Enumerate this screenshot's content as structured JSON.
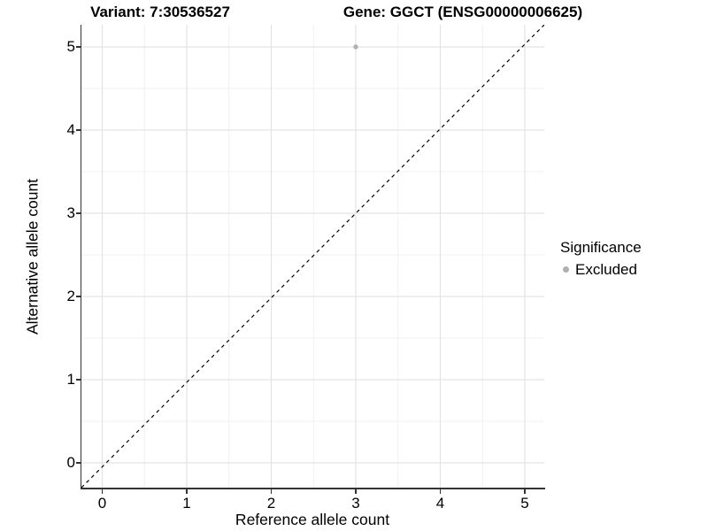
{
  "chart_data": {
    "type": "scatter",
    "title_left": "Variant: 7:30536527",
    "title_right": "Gene: GGCT (ENSG00000006625)",
    "xlabel": "Reference allele count",
    "ylabel": "Alternative allele count",
    "x_ticks": [
      0,
      1,
      2,
      3,
      4,
      5
    ],
    "y_ticks": [
      0,
      1,
      2,
      3,
      4,
      5
    ],
    "xlim": [
      -0.26,
      5.26
    ],
    "ylim": [
      -0.3,
      5.27
    ],
    "grid": {
      "major_step": 1,
      "minor_step": 0.5,
      "visible": true
    },
    "points": [
      {
        "x": 3,
        "y": 5,
        "significance": "Excluded"
      }
    ],
    "reference_line": {
      "equation": "y = x",
      "style": "dashed"
    },
    "legend": {
      "title": "Significance",
      "position": "right",
      "entries": [
        {
          "label": "Excluded"
        }
      ]
    },
    "colors": {
      "point": "#b0b0b0",
      "legend_key": "#b0b0b0",
      "grid_major": "#e3e3e3",
      "grid_minor": "#f0f0f0",
      "axis_line": "#333333",
      "tick_mark": "#333333",
      "reference_line": "#000000",
      "text": "#000000",
      "background": "#ffffff"
    }
  }
}
